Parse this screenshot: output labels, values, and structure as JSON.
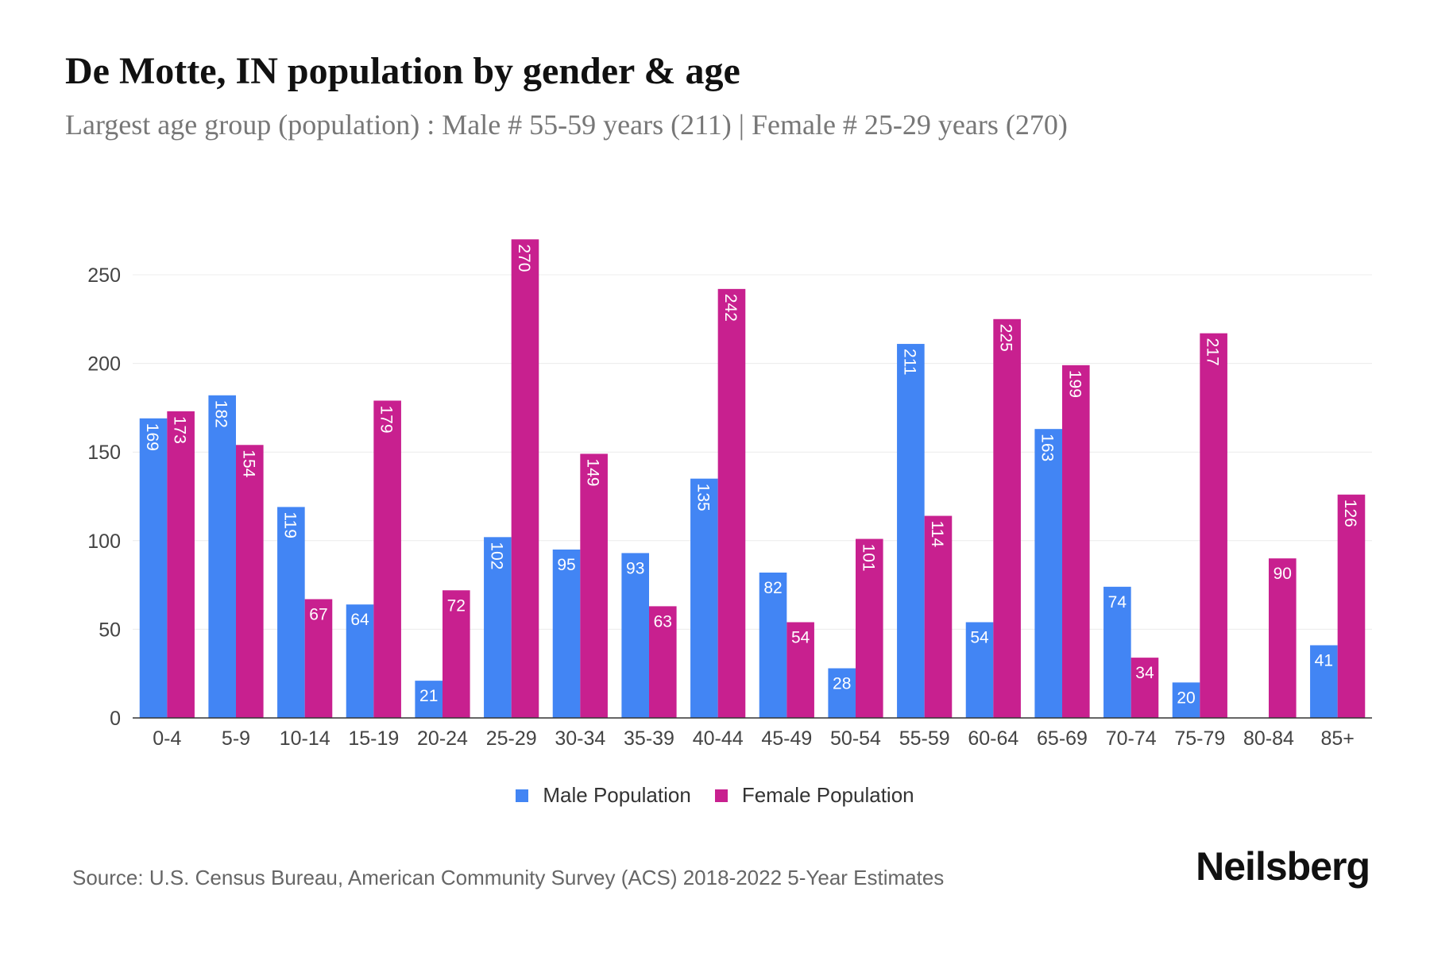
{
  "title": "De Motte, IN population by gender & age",
  "subtitle": "Largest age group (population) : Male # 55-59 years (211) | Female # 25-29 years (270)",
  "source": "Source: U.S. Census Bureau, American Community Survey (ACS) 2018-2022 5-Year Estimates",
  "logo": "Neilsberg",
  "colors": {
    "male": "#4285F4",
    "female": "#C8208F"
  },
  "chart_data": {
    "type": "bar",
    "title": "De Motte, IN population by gender & age",
    "xlabel": "",
    "ylabel": "",
    "ylim": [
      0,
      280
    ],
    "yticks": [
      0,
      50,
      100,
      150,
      200,
      250
    ],
    "grid": true,
    "legend_position": "bottom",
    "categories": [
      "0-4",
      "5-9",
      "10-14",
      "15-19",
      "20-24",
      "25-29",
      "30-34",
      "35-39",
      "40-44",
      "45-49",
      "50-54",
      "55-59",
      "60-64",
      "65-69",
      "70-74",
      "75-79",
      "80-84",
      "85+"
    ],
    "series": [
      {
        "name": "Male Population",
        "values": [
          169,
          182,
          119,
          64,
          21,
          102,
          95,
          93,
          135,
          82,
          28,
          211,
          54,
          163,
          74,
          20,
          null,
          41
        ]
      },
      {
        "name": "Female Population",
        "values": [
          173,
          154,
          67,
          179,
          72,
          270,
          149,
          63,
          242,
          54,
          101,
          114,
          225,
          199,
          34,
          217,
          90,
          126
        ]
      }
    ]
  }
}
